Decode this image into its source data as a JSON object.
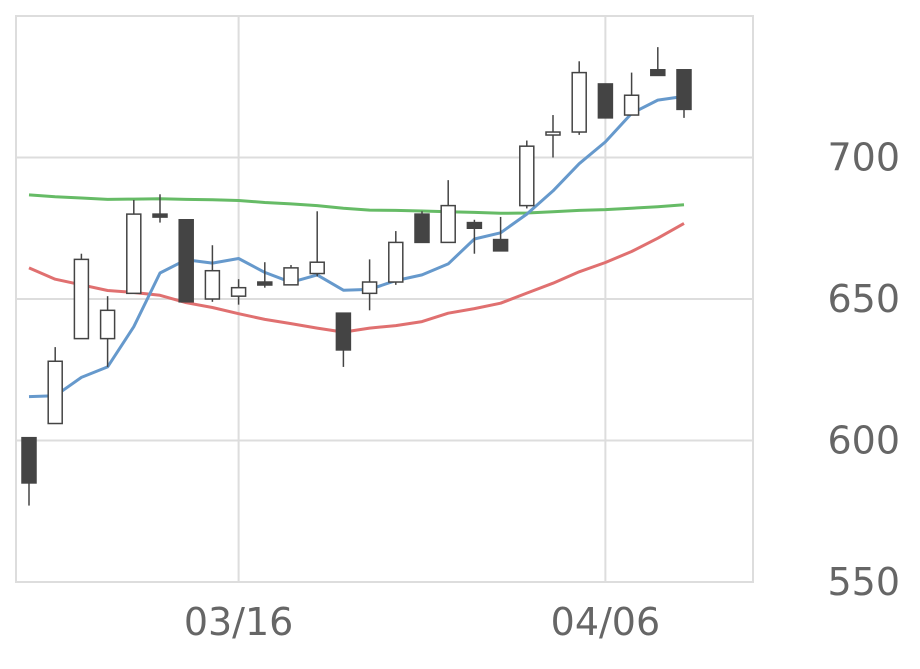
{
  "chart_data": {
    "type": "candlestick",
    "x_tick_labels": [
      "03/16",
      "04/06"
    ],
    "y_tick_labels": [
      "550",
      "600",
      "650",
      "700"
    ],
    "ylim": [
      550,
      750
    ],
    "grid": true,
    "colors": {
      "up_fill": "#ffffff",
      "down_fill": "#444444",
      "candle_edge": "#444444",
      "ma_short": "#6699cc",
      "ma_mid": "#e07070",
      "ma_long": "#66bb66",
      "grid": "#dddddd",
      "frame": "#dddddd"
    },
    "candles": [
      {
        "open": 601,
        "high": 601,
        "low": 577,
        "close": 585
      },
      {
        "open": 606,
        "high": 633,
        "low": 606,
        "close": 628
      },
      {
        "open": 636,
        "high": 666,
        "low": 636,
        "close": 664
      },
      {
        "open": 636,
        "high": 651,
        "low": 626,
        "close": 646
      },
      {
        "open": 652,
        "high": 685,
        "low": 652,
        "close": 680
      },
      {
        "open": 680,
        "high": 687,
        "low": 677,
        "close": 679
      },
      {
        "open": 678,
        "high": 678,
        "low": 649,
        "close": 649
      },
      {
        "open": 650,
        "high": 669,
        "low": 649,
        "close": 660
      },
      {
        "open": 651,
        "high": 657,
        "low": 648,
        "close": 654
      },
      {
        "open": 656,
        "high": 663,
        "low": 654,
        "close": 655
      },
      {
        "open": 655,
        "high": 662,
        "low": 655,
        "close": 661
      },
      {
        "open": 659,
        "high": 681,
        "low": 658,
        "close": 663
      },
      {
        "open": 645,
        "high": 645,
        "low": 626,
        "close": 632
      },
      {
        "open": 652,
        "high": 664,
        "low": 646,
        "close": 656
      },
      {
        "open": 656,
        "high": 674,
        "low": 655,
        "close": 670
      },
      {
        "open": 680,
        "high": 681,
        "low": 670,
        "close": 670
      },
      {
        "open": 670,
        "high": 692,
        "low": 670,
        "close": 683
      },
      {
        "open": 677,
        "high": 678,
        "low": 666,
        "close": 675
      },
      {
        "open": 671,
        "high": 679,
        "low": 667,
        "close": 667
      },
      {
        "open": 683,
        "high": 706,
        "low": 682,
        "close": 704
      },
      {
        "open": 709,
        "high": 715,
        "low": 700,
        "close": 709
      },
      {
        "open": 709,
        "high": 734,
        "low": 708,
        "close": 730
      },
      {
        "open": 726,
        "high": 726,
        "low": 714,
        "close": 714
      },
      {
        "open": 715,
        "high": 730,
        "low": 715,
        "close": 722
      },
      {
        "open": 731,
        "high": 739,
        "low": 729,
        "close": 729
      },
      {
        "open": 731,
        "high": 731,
        "low": 714,
        "close": 717
      }
    ],
    "series": [
      {
        "key": "ma_short",
        "values": [
          615.5,
          615.8,
          622.3,
          626.0,
          640.2,
          659.2,
          663.9,
          662.7,
          664.3,
          659.4,
          655.9,
          658.5,
          653.1,
          653.4,
          656.5,
          658.5,
          662.4,
          671.2,
          673.4,
          680.0,
          688.2,
          697.8,
          705.5,
          715.6,
          720.3,
          721.6
        ]
      },
      {
        "key": "ma_mid",
        "values": [
          661.0,
          657.0,
          655.0,
          653.0,
          652.3,
          651.3,
          648.7,
          647.0,
          644.8,
          642.8,
          641.3,
          639.7,
          638.3,
          639.7,
          640.6,
          642.0,
          645.0,
          646.6,
          648.5,
          652.1,
          655.6,
          659.6,
          662.9,
          666.8,
          671.5,
          676.7
        ]
      },
      {
        "key": "ma_long",
        "values": [
          686.8,
          686.1,
          685.7,
          685.2,
          685.3,
          685.4,
          685.2,
          685.1,
          684.8,
          684.1,
          683.6,
          683.0,
          682.1,
          681.4,
          681.3,
          681.1,
          680.8,
          680.6,
          680.3,
          680.4,
          680.8,
          681.3,
          681.6,
          682.1,
          682.6,
          683.3
        ]
      }
    ]
  }
}
